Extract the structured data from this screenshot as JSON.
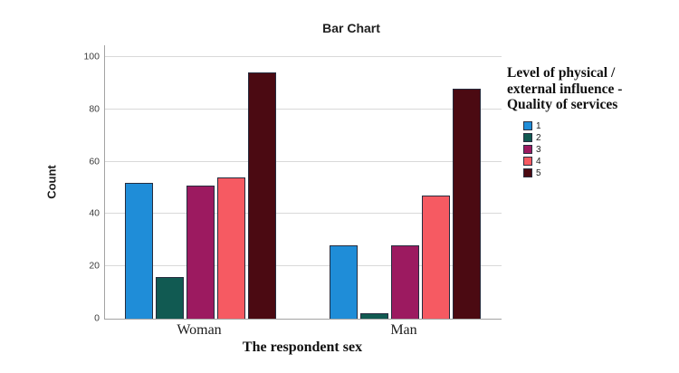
{
  "title": "Bar Chart",
  "chart_data": {
    "type": "bar",
    "title": "Bar Chart",
    "categories": [
      "Woman",
      "Man"
    ],
    "series": [
      {
        "name": "1",
        "color": "#1f8dd8",
        "values": [
          52,
          28
        ]
      },
      {
        "name": "2",
        "color": "#115a52",
        "values": [
          16,
          2
        ]
      },
      {
        "name": "3",
        "color": "#9c1a60",
        "values": [
          51,
          28
        ]
      },
      {
        "name": "4",
        "color": "#f65a62",
        "values": [
          54,
          47
        ]
      },
      {
        "name": "5",
        "color": "#4b0a12",
        "values": [
          94,
          88
        ]
      }
    ],
    "xlabel": "The respondent sex",
    "ylabel": "Count",
    "ylim": [
      0,
      100
    ],
    "yticks": [
      0,
      20,
      40,
      60,
      80,
      100
    ],
    "grid": true,
    "legend_position": "right",
    "legend_title": "Level of physical / external influence - Quality of services",
    "legend_title_lines": [
      "Level of physical /",
      "external influence -",
      "Quality of services"
    ],
    "bar_border_color": "#262c3e"
  },
  "colors": {
    "background": "#ffffff",
    "gridline": "#d9d9d9",
    "axis": "#a3a3a3",
    "title_text": "#1f1f1f",
    "tick_text": "#3c3c3c"
  }
}
